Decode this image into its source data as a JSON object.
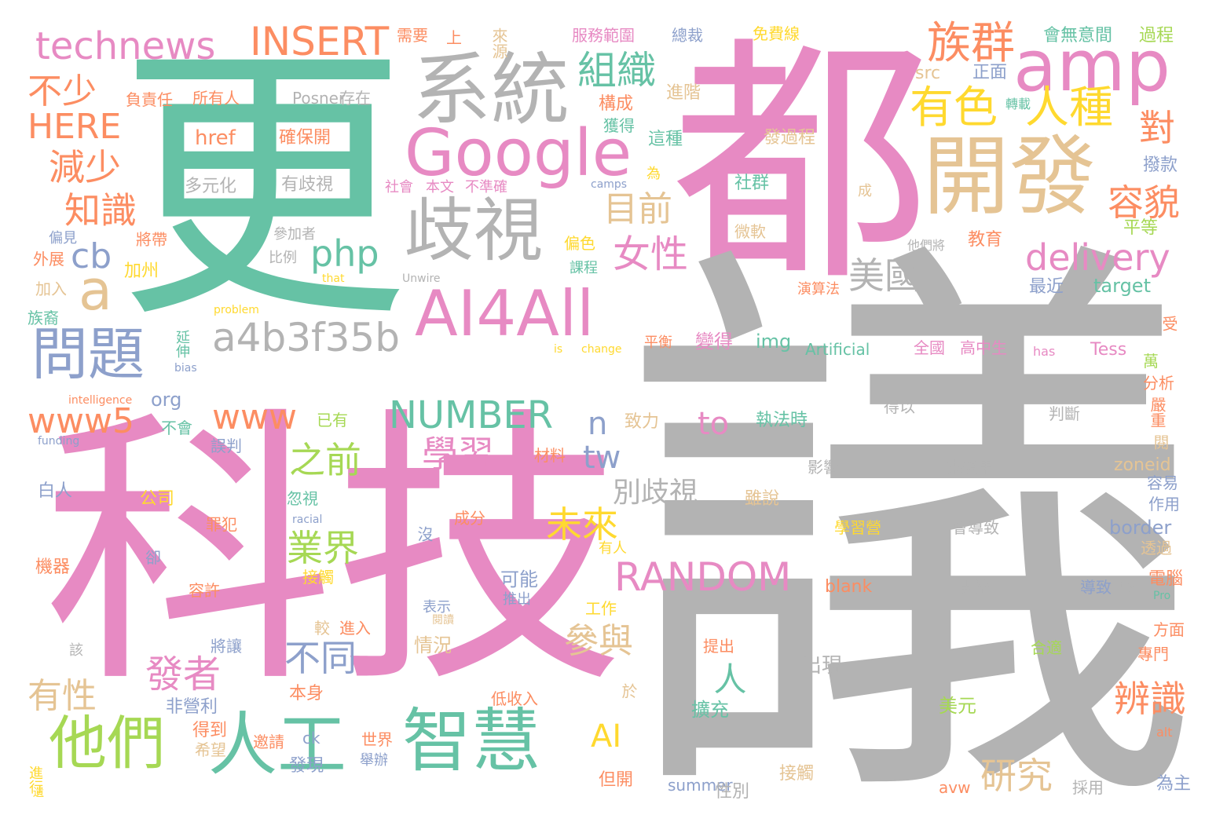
{
  "palette": {
    "green": "#66c2a5",
    "orange": "#fc8d62",
    "blue": "#8da0cb",
    "pink": "#e78ac3",
    "lime": "#a6d854",
    "yellow": "#ffd92f",
    "tan": "#e5c494",
    "gray": "#b3b3b3"
  },
  "words": [
    "都",
    "更",
    "議",
    "科技",
    "系統",
    "開發",
    "amp",
    "Google",
    "歧視",
    "AI4All",
    "technews",
    "INSERT",
    "族群",
    "有色",
    "人種",
    "組織",
    "不少",
    "HERE",
    "減少",
    "知識",
    "a",
    "cb",
    "php",
    "目前",
    "女性",
    "對",
    "容貌",
    "delivery",
    "美國",
    "問題",
    "a4b3f35b",
    "www5",
    "www",
    "NUMBER",
    "n",
    "tw",
    "to",
    "學習",
    "之前",
    "業界",
    "未來",
    "RANDOM",
    "別歧視",
    "不同",
    "參與",
    "發者",
    "人",
    "有性",
    "他們",
    "人工",
    "智慧",
    "AI",
    "研究",
    "辨識",
    "href",
    "確保開",
    "多元化",
    "有歧視",
    "負責任",
    "所有人",
    "Posner",
    "存在",
    "需要",
    "上",
    "來源",
    "服務範圍",
    "總裁",
    "免費線",
    "會無意間",
    "過程",
    "src",
    "正面",
    "構成",
    "進階",
    "獲得",
    "這種",
    "發過程",
    "轉載",
    "社會",
    "本文",
    "不準確",
    "camps",
    "為",
    "社群",
    "成",
    "撥款",
    "平等",
    "參加者",
    "偏見",
    "將帶",
    "外展",
    "比例",
    "微軟",
    "偏色",
    "課程",
    "他們將",
    "教育",
    "加入",
    "加州",
    "that",
    "Unwire",
    "演算法",
    "最近",
    "target",
    "族裔",
    "problem",
    "受",
    "延伸",
    "平衡",
    "變得",
    "img",
    "Artificial",
    "全國",
    "高中生",
    "has",
    "Tess",
    "bias",
    "is",
    "change",
    "萬",
    "分析",
    "intelligence",
    "org",
    "已有",
    "得以",
    "判斷",
    "嚴重",
    "funding",
    "不會",
    "誤判",
    "致力",
    "執法時",
    "閱",
    "材料",
    "影響",
    "來後果",
    "zoneid",
    "容易",
    "白人",
    "公司",
    "忽視",
    "雖說",
    "作用",
    "罪犯",
    "racial",
    "成分",
    "學習營",
    "會導致",
    "border",
    "沒",
    "有人",
    "透過",
    "機器",
    "卻",
    "接觸",
    "可能",
    "開始",
    "電腦",
    "容許",
    "推出",
    "blank",
    "導致",
    "try",
    "Pro",
    "表示",
    "閱讀",
    "工作",
    "較",
    "進入",
    "該",
    "將讓",
    "情況",
    "提出",
    "合適",
    "方面",
    "專門",
    "出現",
    "本身",
    "非營利",
    "於",
    "美元",
    "低收入",
    "擴充",
    "得到",
    "ck",
    "世界",
    "希望",
    "邀請",
    "舉辦",
    "發現",
    "但開",
    "接觸",
    "進行",
    "遺",
    "summer",
    "性別",
    "avw",
    "採用",
    "為主",
    "alt",
    "首圖"
  ]
}
